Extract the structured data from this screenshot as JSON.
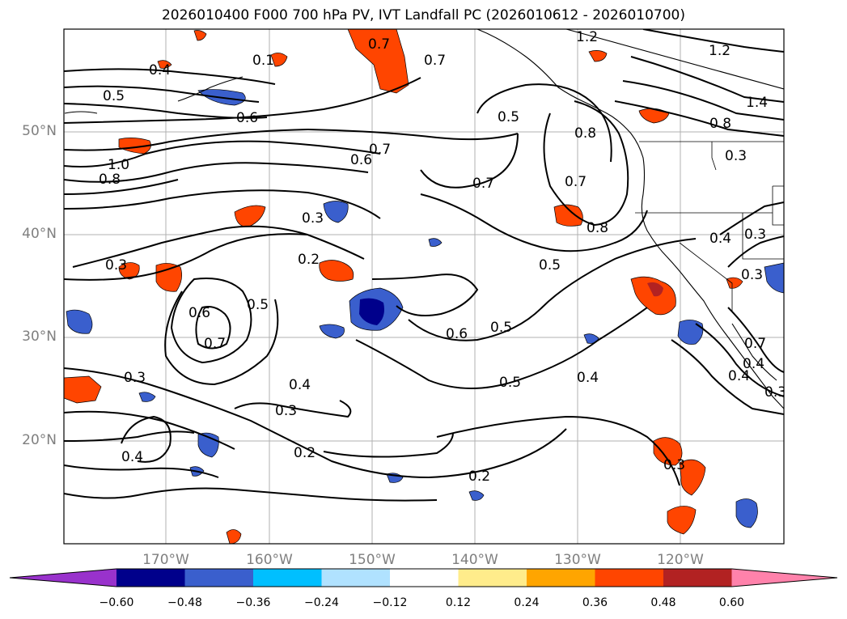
{
  "title": "2026010400 F000 700 hPa PV, IVT Landfall PC (2026010612 - 2026010700)",
  "map": {
    "region": "North-East Pacific Ocean and US West Coast",
    "lon_labels": [
      "170°W",
      "160°W",
      "150°W",
      "140°W",
      "130°W",
      "120°W"
    ],
    "lat_labels": [
      "50°N",
      "40°N",
      "30°N",
      "20°N"
    ],
    "contour_labels": [
      {
        "text": "1.2"
      },
      {
        "text": "1.2"
      },
      {
        "text": "1.4"
      },
      {
        "text": "0.8"
      },
      {
        "text": "0.3"
      },
      {
        "text": "0.7"
      },
      {
        "text": "0.7"
      },
      {
        "text": "0.4"
      },
      {
        "text": "0.5"
      },
      {
        "text": "0.6"
      },
      {
        "text": "0.5"
      },
      {
        "text": "0.8"
      },
      {
        "text": "0.7"
      },
      {
        "text": "0.7"
      },
      {
        "text": "0.8"
      },
      {
        "text": "0.6"
      },
      {
        "text": "0.7"
      },
      {
        "text": "1.0"
      },
      {
        "text": "0.8"
      },
      {
        "text": "0.3"
      },
      {
        "text": "0.2"
      },
      {
        "text": "0.3"
      },
      {
        "text": "0.5"
      },
      {
        "text": "0.6"
      },
      {
        "text": "0.7"
      },
      {
        "text": "0.5"
      },
      {
        "text": "0.6"
      },
      {
        "text": "0.5"
      },
      {
        "text": "0.5"
      },
      {
        "text": "0.4"
      },
      {
        "text": "0.3"
      },
      {
        "text": "0.4"
      },
      {
        "text": "0.3"
      },
      {
        "text": "0.2"
      },
      {
        "text": "0.4"
      },
      {
        "text": "0.2"
      },
      {
        "text": "0.3"
      },
      {
        "text": "0.4"
      },
      {
        "text": "0.3"
      },
      {
        "text": "0.4"
      },
      {
        "text": "0.1"
      },
      {
        "text": "0.7"
      },
      {
        "text": "0.4"
      },
      {
        "text": "0.3"
      },
      {
        "text": "0.3"
      }
    ]
  },
  "colorbar": {
    "ticks": [
      "−0.60",
      "−0.48",
      "−0.36",
      "−0.24",
      "−0.12",
      "0.12",
      "0.24",
      "0.36",
      "0.48",
      "0.60"
    ],
    "colors": [
      "#9932cc",
      "#00008b",
      "#3a5fcd",
      "#00bfff",
      "#b0e2ff",
      "#ffffff",
      "#ffec8b",
      "#ffa500",
      "#ff4500",
      "#b22222",
      "#ff82ab"
    ]
  }
}
